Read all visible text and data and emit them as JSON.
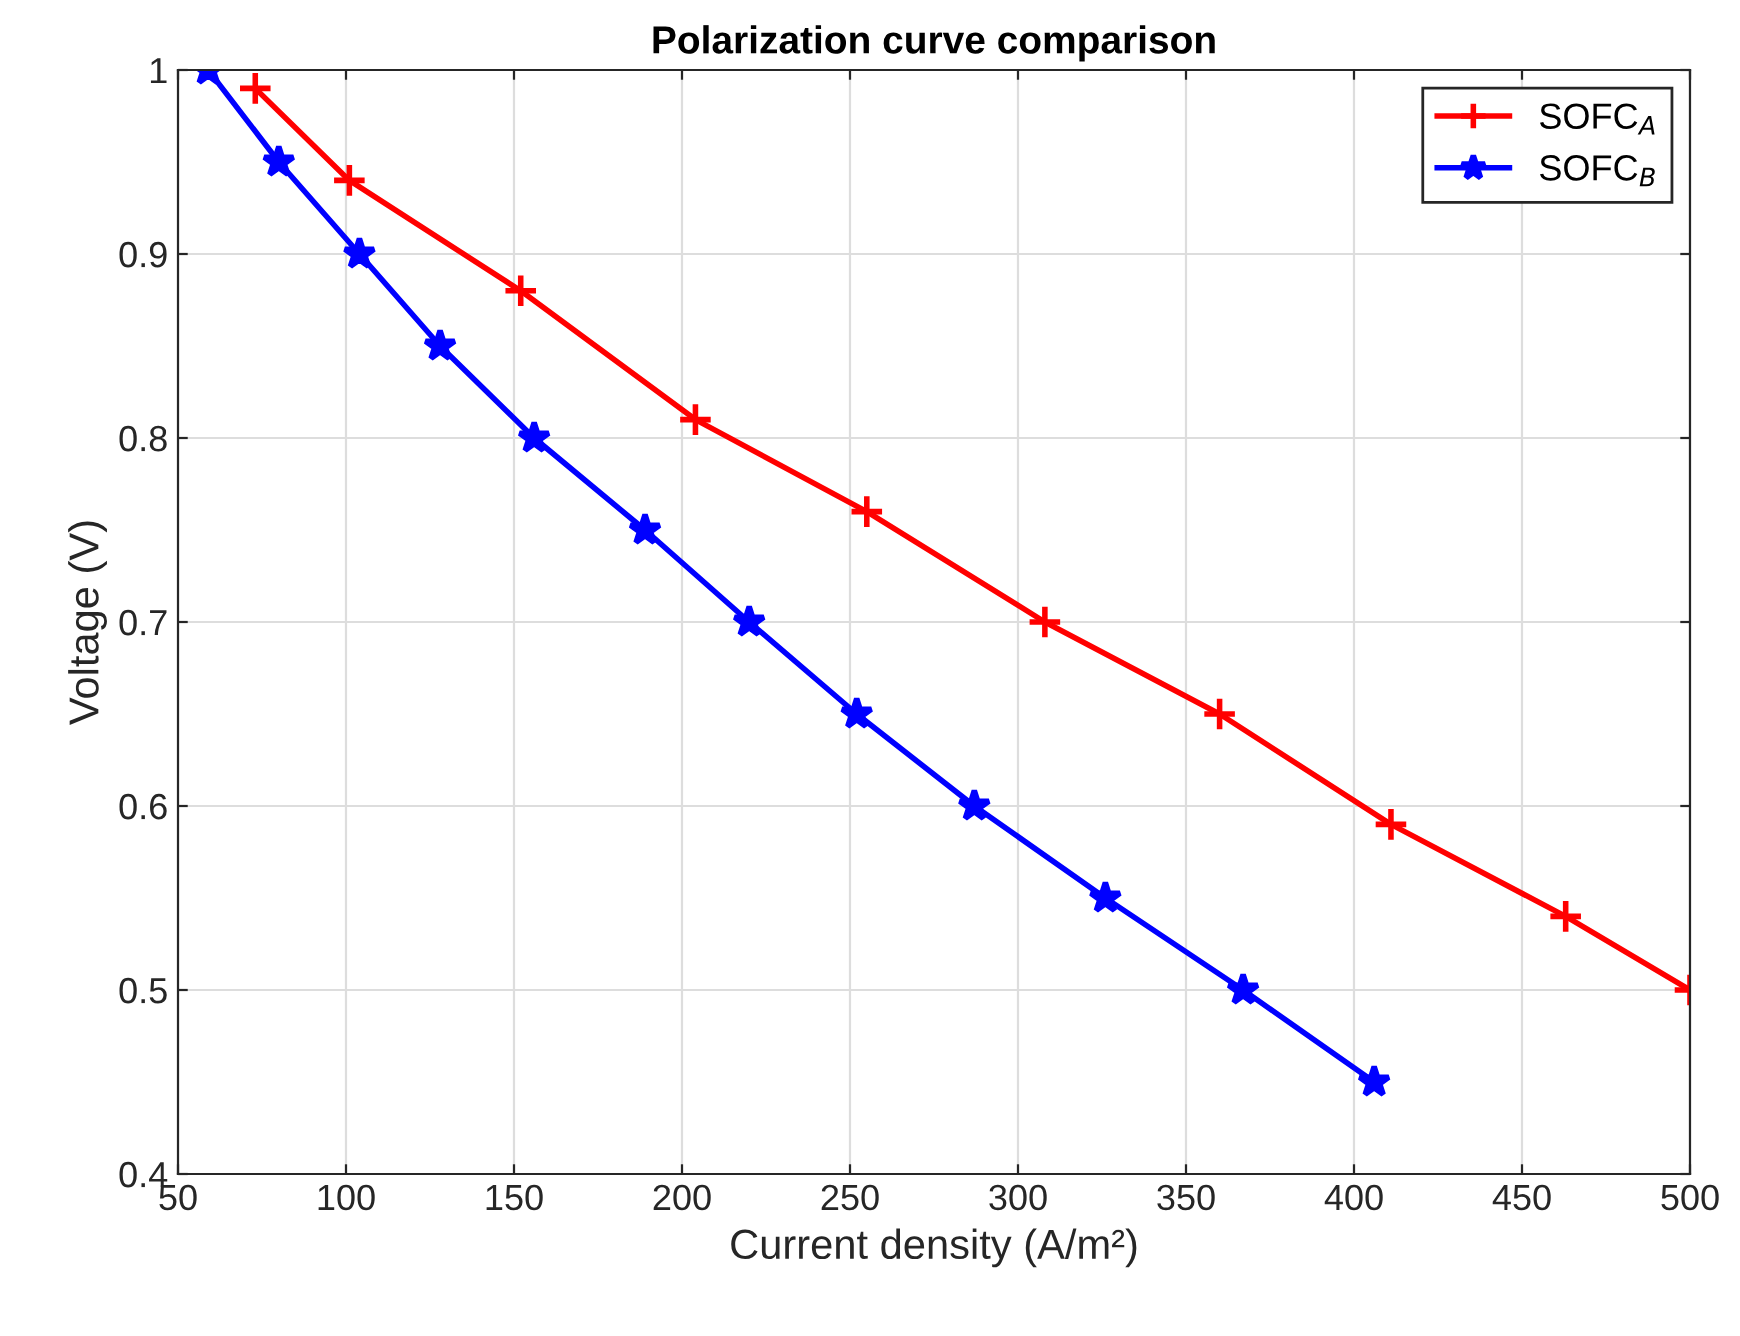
{
  "chart_data": {
    "type": "line",
    "title": "Polarization curve comparison",
    "xlabel": "Current density (A/m²)",
    "ylabel": "Voltage (V)",
    "xlim": [
      50,
      500
    ],
    "xticks": [
      50,
      100,
      150,
      200,
      250,
      300,
      350,
      400,
      450,
      500
    ],
    "ylim": [
      0.4,
      1
    ],
    "yticks": [
      0.4,
      0.5,
      0.6,
      0.7,
      0.8,
      0.9,
      1
    ],
    "grid": true,
    "legend": "top right",
    "line_style": "solid",
    "series": [
      {
        "name": "SOFC$_{A}$",
        "color": "#ff0000",
        "marker": "cross",
        "x": [
          73,
          101,
          152,
          204,
          255,
          308,
          360,
          411,
          463,
          500
        ],
        "values": [
          0.99,
          0.94,
          0.88,
          0.81,
          0.76,
          0.7,
          0.65,
          0.59,
          0.54,
          0.5
        ]
      },
      {
        "name": "SOFC$_{B}$",
        "color": "#0000ff",
        "marker": "star",
        "x": [
          59,
          80,
          104,
          128,
          156,
          189,
          220,
          252,
          287,
          326,
          367,
          406
        ],
        "values": [
          1.0,
          0.95,
          0.9,
          0.85,
          0.8,
          0.75,
          0.7,
          0.65,
          0.6,
          0.55,
          0.5,
          0.45
        ]
      }
    ]
  }
}
